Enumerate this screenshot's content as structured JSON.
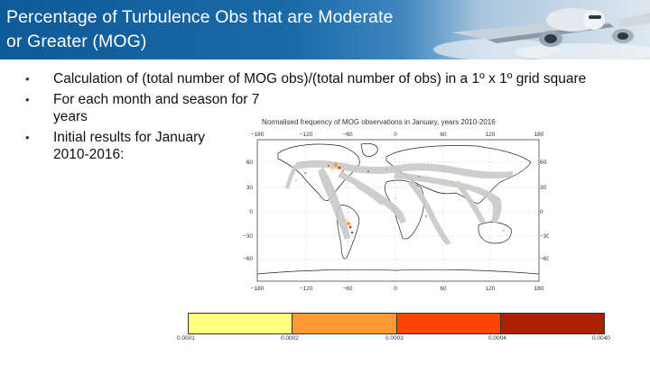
{
  "header": {
    "title": "Percentage of Turbulence Obs that are Moderate or Greater (MOG)",
    "background_image_icon": "airplane-photo"
  },
  "bullets": [
    {
      "text": "Calculation of (total number of MOG obs)/(total number of obs) in a 1º x 1º grid square"
    },
    {
      "text": "For each month and season for 7 years"
    },
    {
      "text": "Initial results for January 2010-2016:"
    }
  ],
  "map": {
    "caption": "Normalised frequency of MOG observations in January, years 2010-2016",
    "top_lon_ticks": [
      "−180",
      "−120",
      "−60",
      "0",
      "60",
      "120",
      "180"
    ],
    "bottom_lon_ticks": [
      "−180",
      "−120",
      "−60",
      "0",
      "60",
      "120",
      "180"
    ],
    "lat_ticks": [
      "60",
      "30",
      "0",
      "−30",
      "−60"
    ]
  },
  "colorbar": {
    "colors": [
      "#ffff80",
      "#ff9933",
      "#ff4400",
      "#aa2200"
    ],
    "ticks": [
      "0.0001",
      "0.0002",
      "0.0003",
      "0.0004",
      "0.0040"
    ]
  }
}
